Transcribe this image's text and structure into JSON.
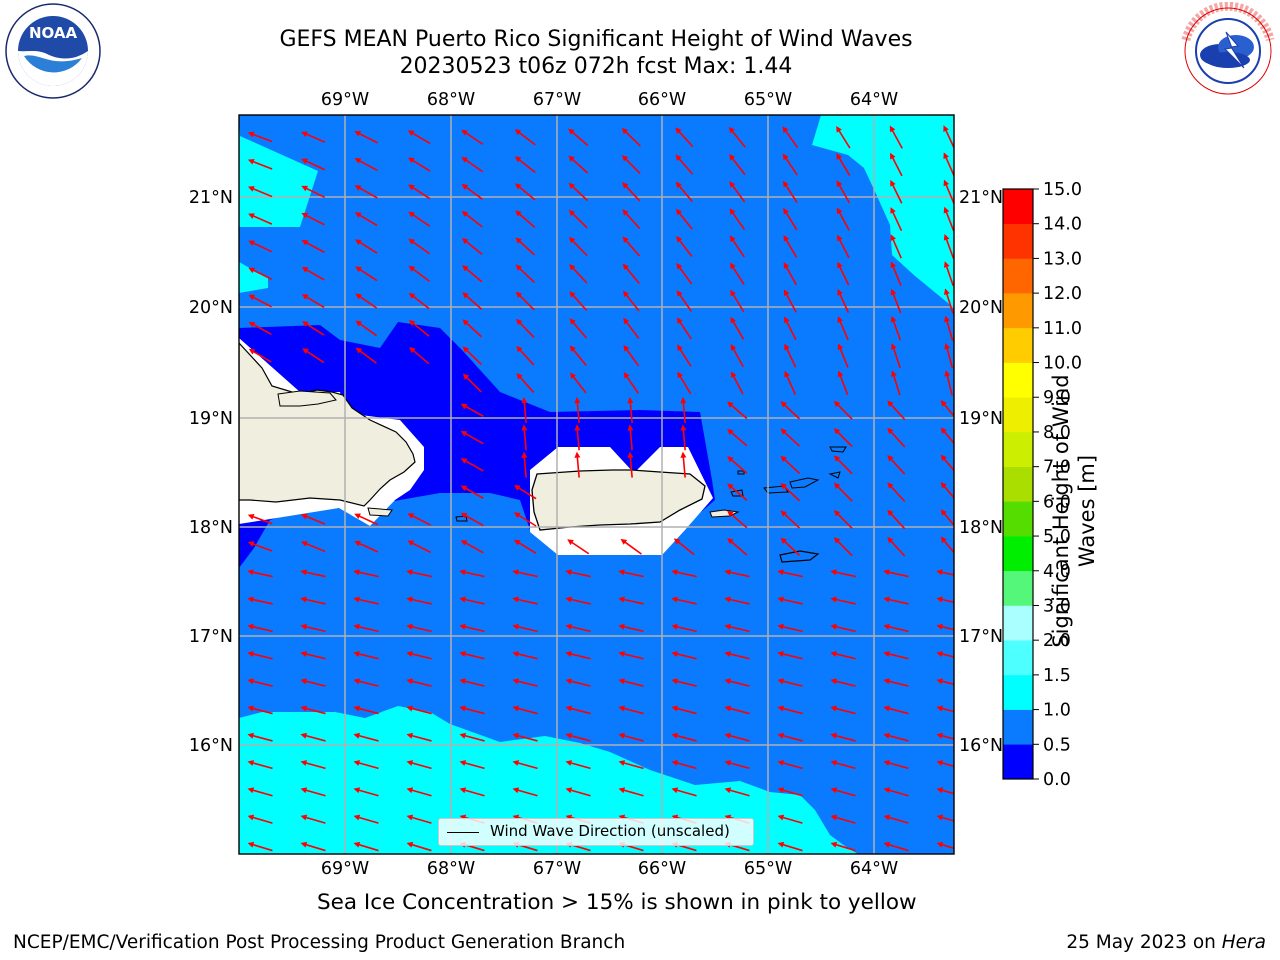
{
  "header": {
    "title_line1": "GEFS MEAN Puerto Rico Significant Height of Wind Waves",
    "title_line2": "20230523 t06z 072h fcst   Max: 1.44"
  },
  "logos": {
    "noara_text": "NOAA",
    "noaa_ring_text": "NATIONAL OCEANIC AND ATMOSPHERIC ADMINISTRATION · U.S. DEPARTMENT OF COMMERCE",
    "nws_ring_text": "NATIONAL WEATHER SERVICE"
  },
  "map": {
    "lon_labels": [
      "69°W",
      "68°W",
      "67°W",
      "66°W",
      "65°W",
      "64°W"
    ],
    "lat_labels": [
      "21°N",
      "20°N",
      "19°N",
      "18°N",
      "17°N",
      "16°N"
    ],
    "legend_label": "Wind Wave Direction (unscaled)",
    "colors": {
      "range_0_0_5": "#0000ff",
      "range_0_5_1_0": "#0a7aff",
      "range_1_0_1_5": "#00ffff",
      "land": "#efeedf",
      "arrow": "#ff0000",
      "grid": "#b0b0b0"
    }
  },
  "colorbar": {
    "title": "Significant Height of Wind Waves [m]",
    "ticks": [
      "0.0",
      "0.5",
      "1.0",
      "1.5",
      "2.0",
      "3.0",
      "4.0",
      "5.0",
      "6.0",
      "7.0",
      "8.0",
      "9.0",
      "10.0",
      "11.0",
      "12.0",
      "13.0",
      "14.0",
      "15.0"
    ],
    "colors": [
      "#0000ff",
      "#0a7aff",
      "#00ffff",
      "#4dffff",
      "#aaffff",
      "#55f77a",
      "#00ee00",
      "#55dd00",
      "#aadd00",
      "#ccee00",
      "#eeee00",
      "#ffff00",
      "#ffcc00",
      "#ff9900",
      "#ff6600",
      "#ff3300",
      "#ff0000"
    ]
  },
  "notes": {
    "sea_ice": "Sea Ice Concentration > 15% is shown in pink to yellow"
  },
  "footer": {
    "left": "NCEP/EMC/Verification Post Processing Product Generation Branch",
    "right_prefix": "25 May 2023 on ",
    "right_host": "Hera"
  }
}
